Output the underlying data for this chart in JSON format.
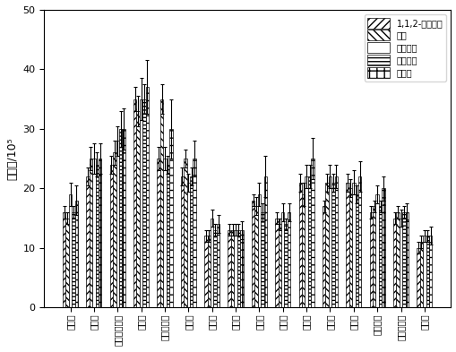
{
  "categories": [
    "敢敢畏",
    "生菜碗",
    "地亚农内吸碗",
    "乙拌碗",
    "甲基对硫碗",
    "倍硫碗",
    "毒死蚁",
    "喹硫碗",
    "火线碗",
    "内以碗",
    "火螱碗",
    "丯铲碗",
    "三甲碗",
    "硫灭对碗",
    "亚硫敘硫碗",
    "沙赛碗"
  ],
  "series": [
    {
      "name": "1,1,2-三氯乙烷",
      "values": [
        16,
        22,
        24,
        35,
        25,
        22,
        12,
        13,
        18,
        15,
        21,
        17,
        21,
        16,
        15,
        10
      ],
      "errors": [
        1.0,
        1.5,
        1.5,
        2.0,
        2.0,
        1.5,
        1.0,
        1.0,
        1.0,
        1.0,
        1.5,
        1.0,
        1.5,
        1.0,
        1.0,
        1.0
      ],
      "hatch": "////",
      "facecolor": "white",
      "edgecolor": "black"
    },
    {
      "name": "甲苯",
      "values": [
        15,
        25,
        26,
        33,
        35,
        25,
        12,
        13,
        17,
        14,
        19,
        21,
        20,
        17,
        16,
        11
      ],
      "errors": [
        1.0,
        2.0,
        2.0,
        2.5,
        2.5,
        1.5,
        1.0,
        1.0,
        1.5,
        1.0,
        2.0,
        1.5,
        1.5,
        1.0,
        1.0,
        1.0
      ],
      "hatch": "\\\\\\\\",
      "facecolor": "white",
      "edgecolor": "black"
    },
    {
      "name": "二氯甲烷",
      "values": [
        19,
        25,
        28,
        35,
        25,
        21,
        15,
        13,
        19,
        16,
        22,
        22,
        21,
        19,
        15,
        12
      ],
      "errors": [
        2.0,
        2.5,
        2.5,
        3.5,
        2.0,
        1.5,
        1.5,
        1.0,
        2.0,
        1.5,
        2.0,
        2.0,
        2.0,
        1.5,
        1.5,
        1.0
      ],
      "hatch": "",
      "facecolor": "white",
      "edgecolor": "black"
    },
    {
      "name": "三氯甲烷",
      "values": [
        16,
        24,
        30,
        35,
        24,
        22,
        13,
        13,
        16,
        14,
        22,
        21,
        19,
        17,
        16,
        12
      ],
      "errors": [
        1.0,
        2.0,
        3.0,
        2.5,
        1.5,
        1.5,
        1.0,
        1.0,
        1.5,
        1.0,
        2.0,
        1.5,
        1.5,
        1.0,
        1.0,
        1.0
      ],
      "hatch": "----",
      "facecolor": "white",
      "edgecolor": "black"
    },
    {
      "name": "正三烷",
      "values": [
        18,
        25,
        30,
        37,
        30,
        25,
        14,
        13,
        22,
        16,
        25,
        22,
        22,
        20,
        16,
        12
      ],
      "errors": [
        2.5,
        2.5,
        3.5,
        4.5,
        5.0,
        3.0,
        1.5,
        1.5,
        3.5,
        1.5,
        3.5,
        2.0,
        2.5,
        2.0,
        1.5,
        1.5
      ],
      "hatch": "++",
      "facecolor": "white",
      "edgecolor": "black"
    }
  ],
  "ylabel": "峰面积/10⁵",
  "ylim": [
    0,
    50
  ],
  "yticks": [
    0,
    10,
    20,
    30,
    40,
    50
  ],
  "bar_width": 0.13,
  "figsize": [
    5.1,
    3.93
  ],
  "dpi": 100
}
